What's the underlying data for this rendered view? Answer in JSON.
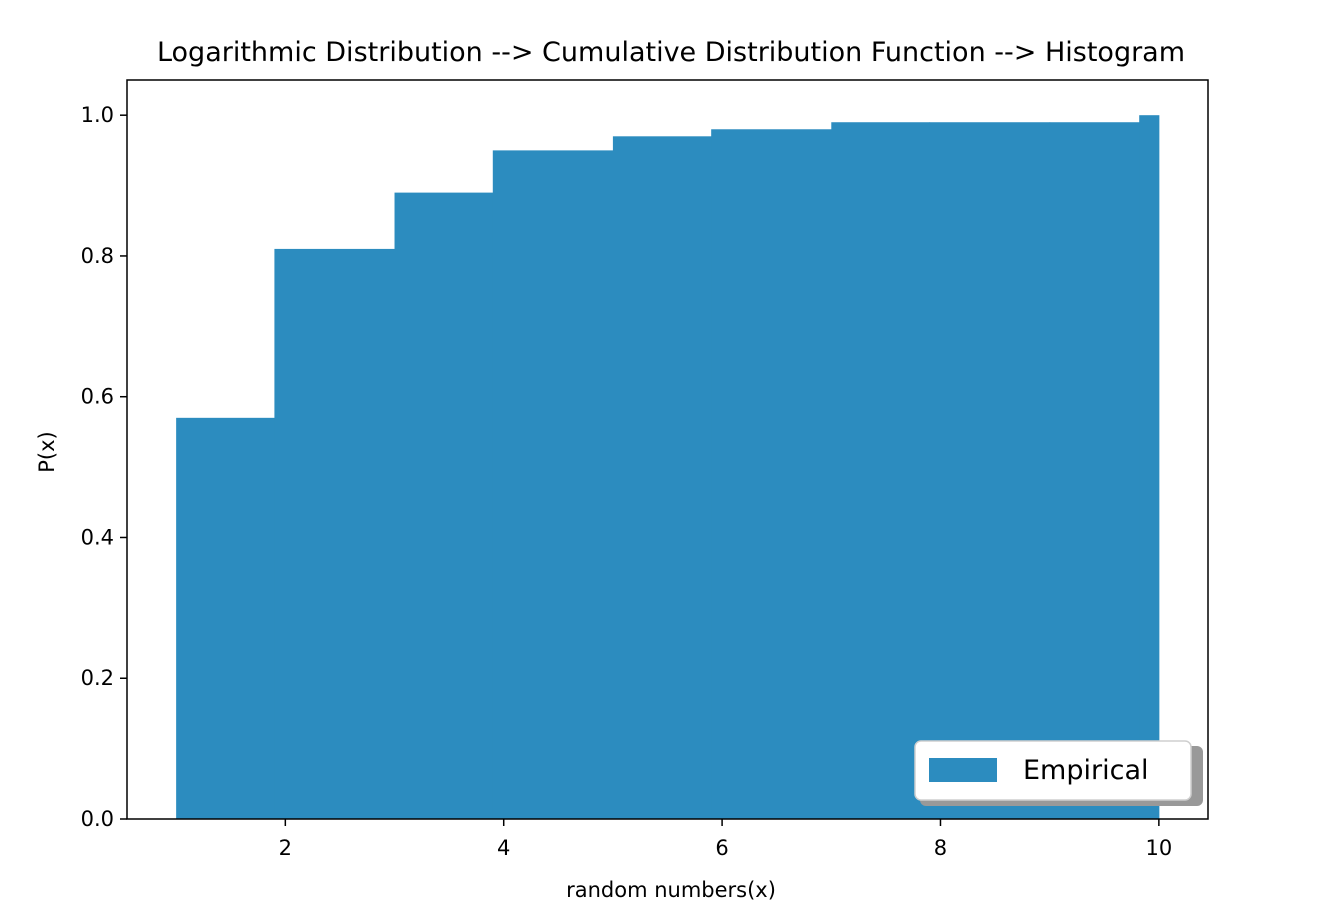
{
  "chart_data": {
    "type": "bar",
    "title": "Logarithmic Distribution --> Cumulative Distribution Function --> Histogram",
    "xlabel": "random numbers(x)",
    "ylabel": "P(x)",
    "xlim": [
      0.55,
      10.45
    ],
    "ylim": [
      0,
      1.05
    ],
    "x_ticks": [
      "2",
      "4",
      "6",
      "8",
      "10"
    ],
    "y_ticks": [
      "0.0",
      "0.2",
      "0.4",
      "0.6",
      "0.8",
      "1.0"
    ],
    "bins": [
      {
        "x0": 1.0,
        "x1": 1.9,
        "value": 0.57
      },
      {
        "x0": 1.9,
        "x1": 3.0,
        "value": 0.81
      },
      {
        "x0": 3.0,
        "x1": 3.9,
        "value": 0.89
      },
      {
        "x0": 3.9,
        "x1": 5.0,
        "value": 0.95
      },
      {
        "x0": 5.0,
        "x1": 5.9,
        "value": 0.97
      },
      {
        "x0": 5.9,
        "x1": 7.0,
        "value": 0.98
      },
      {
        "x0": 7.0,
        "x1": 7.9,
        "value": 0.99
      },
      {
        "x0": 7.9,
        "x1": 9.0,
        "value": 0.99
      },
      {
        "x0": 9.0,
        "x1": 9.82,
        "value": 0.99
      },
      {
        "x0": 9.82,
        "x1": 10.0,
        "value": 1.0
      }
    ],
    "series": [
      {
        "name": "Empirical",
        "color": "#2c8cbf"
      }
    ],
    "legend_position": "lower-right",
    "grid": false
  }
}
